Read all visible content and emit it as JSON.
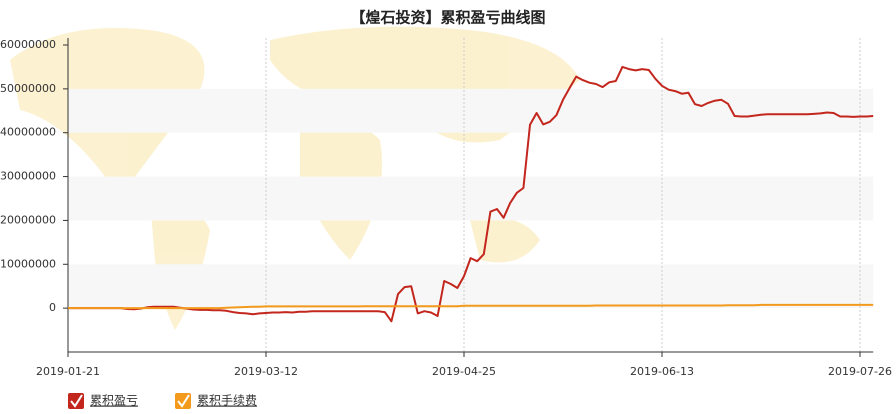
{
  "chart_data": {
    "type": "line",
    "title": "【煌石投资】累积盈亏曲线图",
    "categories": [
      "2019-01-21",
      null,
      null,
      null,
      null,
      null,
      null,
      null,
      null,
      null,
      null,
      null,
      null,
      null,
      null,
      null,
      null,
      null,
      null,
      null,
      null,
      null,
      null,
      null,
      null,
      null,
      null,
      null,
      null,
      null,
      "2019-03-12",
      null,
      null,
      null,
      null,
      null,
      null,
      null,
      null,
      null,
      null,
      null,
      null,
      null,
      null,
      null,
      null,
      null,
      null,
      null,
      null,
      null,
      null,
      null,
      null,
      null,
      null,
      null,
      null,
      null,
      "2019-04-25",
      null,
      null,
      null,
      null,
      null,
      null,
      null,
      null,
      null,
      null,
      null,
      null,
      null,
      null,
      null,
      null,
      null,
      null,
      null,
      null,
      null,
      null,
      null,
      null,
      null,
      null,
      null,
      null,
      null,
      "2019-06-13",
      null,
      null,
      null,
      null,
      null,
      null,
      null,
      null,
      null,
      null,
      null,
      null,
      null,
      null,
      null,
      null,
      null,
      null,
      null,
      null,
      null,
      null,
      null,
      null,
      null,
      null,
      null,
      null,
      null,
      "2019-07-26",
      null,
      null
    ],
    "series": [
      {
        "name": "累积盈亏",
        "color": "#c3261c",
        "values": [
          0,
          0,
          0,
          0,
          0,
          0,
          0,
          0,
          0,
          -200000,
          -250000,
          -100000,
          200000,
          300000,
          300000,
          300000,
          300000,
          100000,
          -100000,
          -300000,
          -400000,
          -400000,
          -500000,
          -500000,
          -600000,
          -900000,
          -1100000,
          -1200000,
          -1400000,
          -1200000,
          -1100000,
          -1000000,
          -1000000,
          -900000,
          -1000000,
          -800000,
          -800000,
          -700000,
          -700000,
          -700000,
          -700000,
          -700000,
          -700000,
          -700000,
          -700000,
          -700000,
          -700000,
          -700000,
          -900000,
          -3000000,
          3200000,
          4800000,
          5000000,
          -1200000,
          -700000,
          -1000000,
          -1800000,
          6200000,
          5500000,
          4600000,
          7300000,
          11400000,
          10700000,
          12300000,
          22000000,
          22600000,
          20600000,
          24000000,
          26300000,
          27400000,
          41800000,
          44500000,
          41900000,
          42500000,
          44000000,
          47500000,
          50200000,
          52800000,
          52000000,
          51400000,
          51100000,
          50400000,
          51500000,
          51800000,
          55000000,
          54500000,
          54200000,
          54500000,
          54300000,
          52300000,
          50700000,
          49800000,
          49500000,
          48900000,
          49100000,
          46500000,
          46100000,
          46800000,
          47300000,
          47500000,
          46600000,
          43800000,
          43700000,
          43700000,
          43900000,
          44100000,
          44200000,
          44200000,
          44200000,
          44200000,
          44200000,
          44200000,
          44200000,
          44300000,
          44400000,
          44600000,
          44500000,
          43700000,
          43700000,
          43600000,
          43700000,
          43700000,
          43800000
        ]
      },
      {
        "name": "累积手续费",
        "color": "#f39a1d",
        "values": [
          0,
          0,
          0,
          0,
          0,
          0,
          0,
          0,
          0,
          0,
          0,
          0,
          0,
          0,
          0,
          0,
          0,
          0,
          0,
          0,
          0,
          0,
          0,
          0,
          100000,
          150000,
          200000,
          250000,
          300000,
          300000,
          400000,
          400000,
          400000,
          400000,
          400000,
          400000,
          400000,
          400000,
          400000,
          400000,
          400000,
          400000,
          400000,
          400000,
          400000,
          450000,
          450000,
          450000,
          450000,
          450000,
          450000,
          450000,
          450000,
          450000,
          450000,
          450000,
          450000,
          450000,
          450000,
          450000,
          550000,
          550000,
          550000,
          550000,
          550000,
          550000,
          550000,
          550000,
          550000,
          550000,
          550000,
          550000,
          550000,
          550000,
          550000,
          550000,
          550000,
          550000,
          550000,
          550000,
          600000,
          600000,
          600000,
          600000,
          600000,
          600000,
          600000,
          600000,
          600000,
          600000,
          600000,
          600000,
          600000,
          600000,
          600000,
          600000,
          600000,
          600000,
          600000,
          600000,
          650000,
          650000,
          650000,
          650000,
          650000,
          750000,
          750000,
          750000,
          750000,
          750000,
          750000,
          750000,
          750000,
          750000,
          750000,
          750000,
          750000,
          750000,
          750000,
          750000,
          750000,
          750000,
          750000
        ]
      }
    ],
    "ylim": [
      -10000000,
      60000000
    ],
    "yticks": [
      0,
      10000000,
      20000000,
      30000000,
      40000000,
      50000000,
      60000000
    ],
    "grid": true
  }
}
